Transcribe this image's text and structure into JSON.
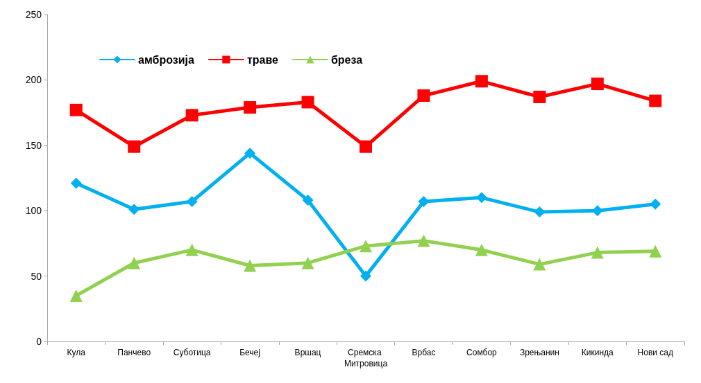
{
  "chart_data": {
    "type": "line",
    "categories": [
      "Кула",
      "Панчево",
      "Суботица",
      "Бечеј",
      "Вршац",
      "Сремска Митровица",
      "Врбас",
      "Сомбор",
      "Зрењанин",
      "Кикинда",
      "Нови сад"
    ],
    "series": [
      {
        "name": "амброзија",
        "color": "#00b0f0",
        "marker": "diamond",
        "values": [
          121,
          101,
          107,
          144,
          108,
          50,
          107,
          110,
          99,
          100,
          105
        ]
      },
      {
        "name": "траве",
        "color": "#ff0000",
        "marker": "square",
        "values": [
          177,
          149,
          173,
          179,
          183,
          149,
          188,
          199,
          187,
          197,
          184
        ]
      },
      {
        "name": "бреза",
        "color": "#92d050",
        "marker": "triangle",
        "values": [
          35,
          60,
          70,
          58,
          60,
          73,
          77,
          70,
          59,
          68,
          69
        ]
      }
    ],
    "ylim": [
      0,
      250
    ],
    "yticks": [
      0,
      50,
      100,
      150,
      200,
      250
    ],
    "grid": false,
    "legend": "top left",
    "line_style": "solid"
  }
}
